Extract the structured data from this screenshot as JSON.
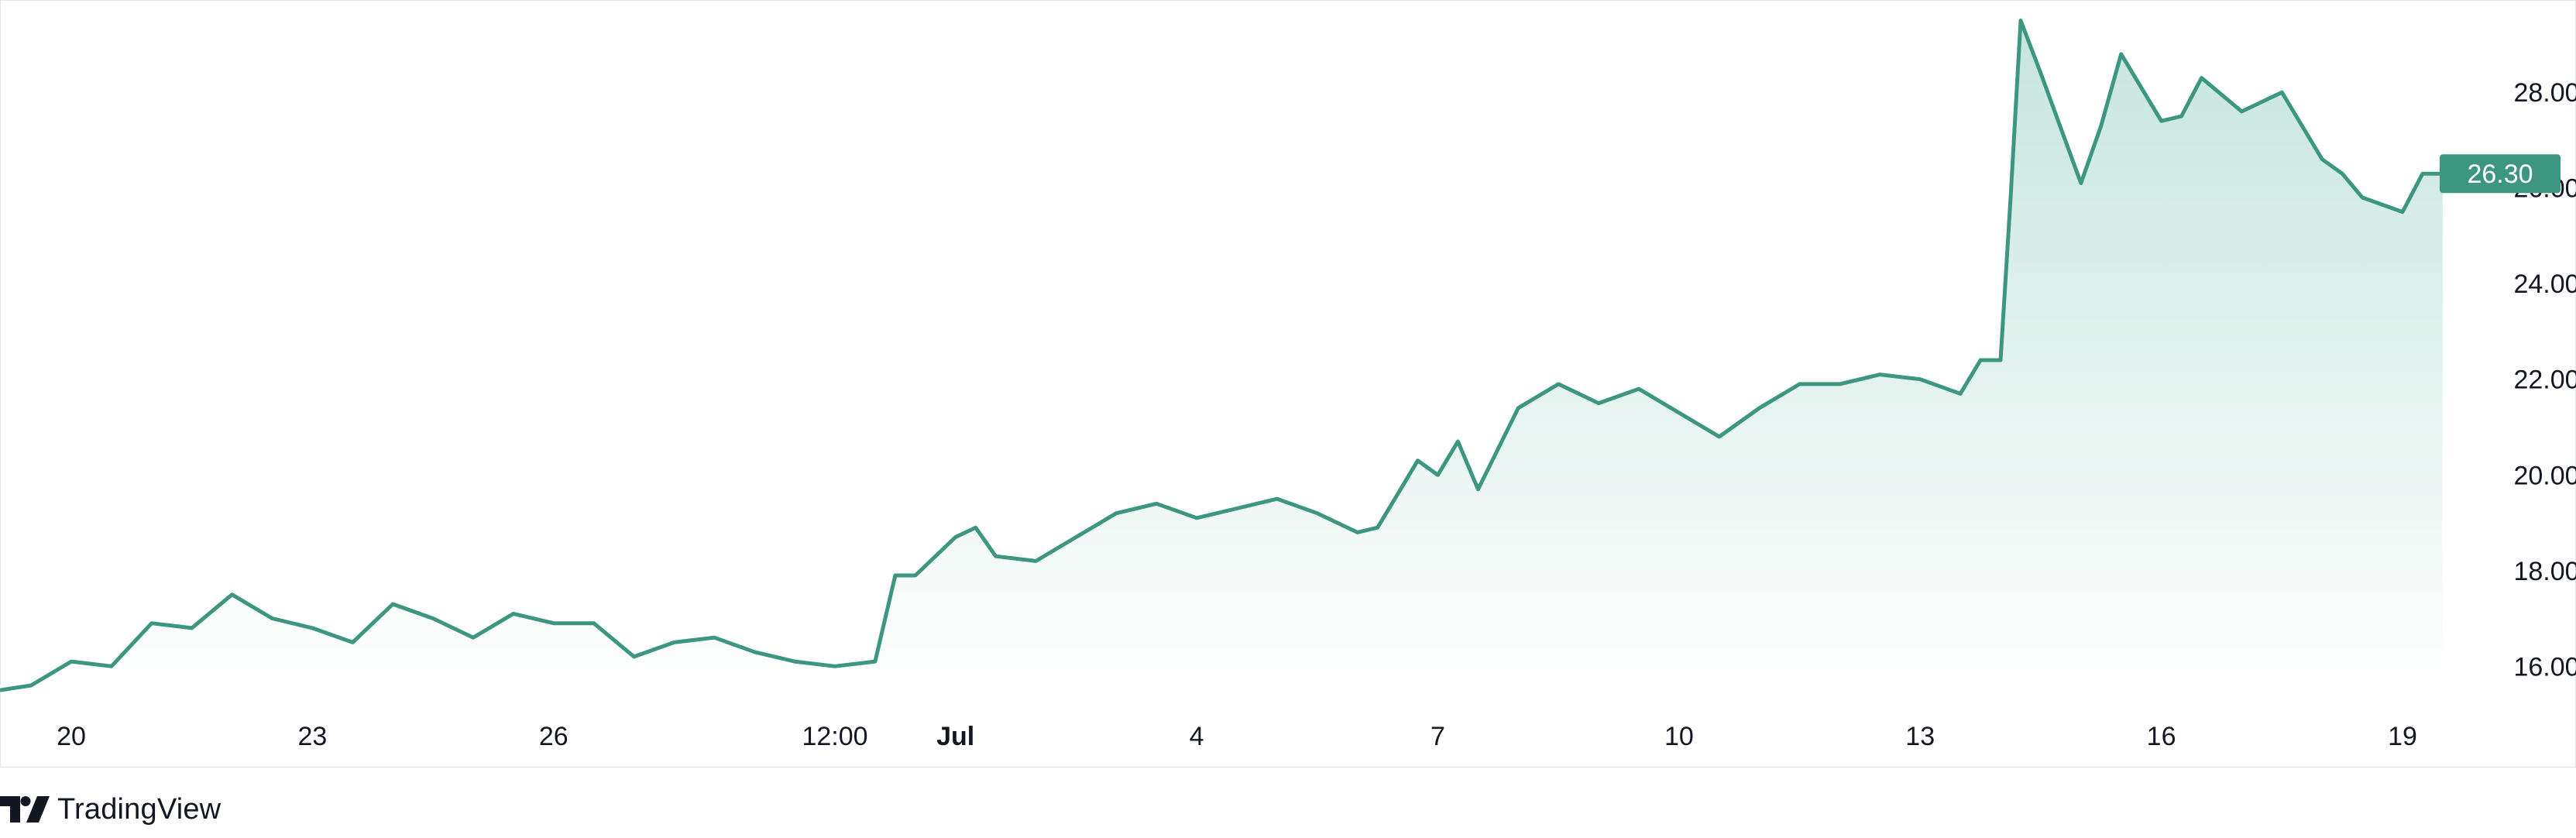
{
  "brand": {
    "name": "TradingView",
    "logo_icon": "tradingview-logo-icon"
  },
  "colors": {
    "line": "#3d9680",
    "area_top": "#c6e5dd",
    "area_bottom": "#ffffff",
    "price_label_bg": "#3d9680",
    "text": "#131722",
    "border": "#e0e3eb"
  },
  "chart_data": {
    "type": "area",
    "x_tick_labels": [
      "20",
      "23",
      "26",
      "12:00",
      "Jul",
      "4",
      "7",
      "10",
      "13",
      "16",
      "19"
    ],
    "x_tick_bold": [
      "Jul"
    ],
    "x_tick_dates": [
      "Jun 20",
      "Jun 23",
      "Jun 26",
      "Jun 29 12:00",
      "Jul 1",
      "Jul 4",
      "Jul 7",
      "Jul 10",
      "Jul 13",
      "Jul 16",
      "Jul 19"
    ],
    "y_tick_labels": [
      "16.00",
      "18.00",
      "20.00",
      "22.00",
      "24.00",
      "26.00",
      "28.00"
    ],
    "ylim": [
      15.6,
      29.8
    ],
    "grid": false,
    "last_price": 26.3,
    "last_price_label": "26.30",
    "series": [
      {
        "x": [
          "Jun 19",
          "Jun 19 12:00",
          "Jun 20",
          "Jun 20 12:00",
          "Jun 21",
          "Jun 21 12:00",
          "Jun 22",
          "Jun 22 12:00",
          "Jun 23",
          "Jun 23 12:00",
          "Jun 24",
          "Jun 24 12:00",
          "Jun 25",
          "Jun 25 12:00",
          "Jun 26",
          "Jun 26 12:00",
          "Jun 27",
          "Jun 27 12:00",
          "Jun 28",
          "Jun 28 12:00",
          "Jun 29",
          "Jun 29 12:00",
          "Jun 30",
          "Jun 30 06:00",
          "Jun 30 12:00",
          "Jul 1",
          "Jul 1 06:00",
          "Jul 1 12:00",
          "Jul 2",
          "Jul 2 12:00",
          "Jul 3",
          "Jul 3 12:00",
          "Jul 4",
          "Jul 4 12:00",
          "Jul 5",
          "Jul 5 12:00",
          "Jul 6",
          "Jul 6 06:00",
          "Jul 6 12:00",
          "Jul 6 18:00",
          "Jul 7",
          "Jul 7 06:00",
          "Jul 7 12:00",
          "Jul 8",
          "Jul 8 12:00",
          "Jul 9",
          "Jul 9 12:00",
          "Jul 10",
          "Jul 10 12:00",
          "Jul 11",
          "Jul 11 12:00",
          "Jul 12",
          "Jul 12 12:00",
          "Jul 13",
          "Jul 13 12:00",
          "Jul 13 18:00",
          "Jul 14",
          "Jul 14 03:00",
          "Jul 14 06:00",
          "Jul 14 12:00",
          "Jul 15",
          "Jul 15 06:00",
          "Jul 15 12:00",
          "Jul 16",
          "Jul 16 06:00",
          "Jul 16 12:00",
          "Jul 17",
          "Jul 17 12:00",
          "Jul 18",
          "Jul 18 06:00",
          "Jul 18 12:00",
          "Jul 19",
          "Jul 19 06:00",
          "Jul 19 12:00"
        ],
        "values": [
          15.5,
          15.6,
          16.1,
          16.0,
          16.9,
          16.8,
          17.5,
          17.0,
          16.8,
          16.5,
          17.3,
          17.0,
          16.6,
          17.1,
          16.9,
          16.9,
          16.2,
          16.5,
          16.6,
          16.3,
          16.1,
          16.0,
          16.1,
          17.9,
          17.9,
          18.7,
          18.9,
          18.3,
          18.2,
          18.7,
          19.2,
          19.4,
          19.1,
          19.3,
          19.5,
          19.2,
          18.8,
          18.9,
          19.6,
          20.3,
          20.0,
          20.7,
          19.7,
          21.4,
          21.9,
          21.5,
          21.8,
          21.3,
          20.8,
          21.4,
          21.9,
          21.9,
          22.1,
          22.0,
          21.7,
          22.4,
          22.4,
          25.8,
          29.5,
          28.4,
          26.1,
          27.3,
          28.8,
          27.4,
          27.5,
          28.3,
          27.6,
          28.0,
          26.6,
          26.3,
          25.8,
          25.5,
          26.3,
          26.3
        ]
      }
    ]
  }
}
